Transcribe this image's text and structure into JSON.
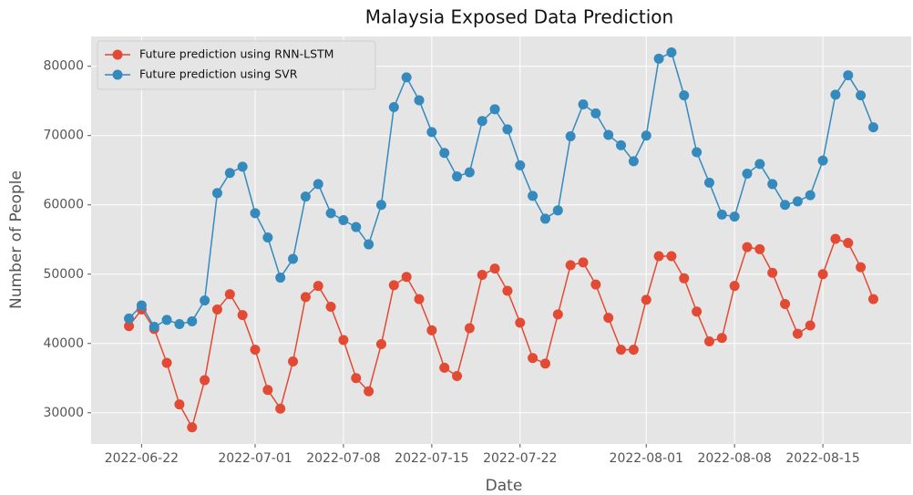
{
  "chart_data": {
    "type": "line",
    "title": "Malaysia Exposed Data Prediction",
    "x_label": "Date",
    "y_label": "Number of People",
    "x": [
      "2022-06-21",
      "2022-06-22",
      "2022-06-23",
      "2022-06-24",
      "2022-06-25",
      "2022-06-26",
      "2022-06-27",
      "2022-06-28",
      "2022-06-29",
      "2022-06-30",
      "2022-07-01",
      "2022-07-02",
      "2022-07-03",
      "2022-07-04",
      "2022-07-05",
      "2022-07-06",
      "2022-07-07",
      "2022-07-08",
      "2022-07-09",
      "2022-07-10",
      "2022-07-11",
      "2022-07-12",
      "2022-07-13",
      "2022-07-14",
      "2022-07-15",
      "2022-07-16",
      "2022-07-17",
      "2022-07-18",
      "2022-07-19",
      "2022-07-20",
      "2022-07-21",
      "2022-07-22",
      "2022-07-23",
      "2022-07-24",
      "2022-07-25",
      "2022-07-26",
      "2022-07-27",
      "2022-07-28",
      "2022-07-29",
      "2022-07-30",
      "2022-07-31",
      "2022-08-01",
      "2022-08-02",
      "2022-08-03",
      "2022-08-04",
      "2022-08-05",
      "2022-08-06",
      "2022-08-07",
      "2022-08-08",
      "2022-08-09",
      "2022-08-10",
      "2022-08-11",
      "2022-08-12",
      "2022-08-13",
      "2022-08-14",
      "2022-08-15",
      "2022-08-16",
      "2022-08-17",
      "2022-08-18",
      "2022-08-19"
    ],
    "series": [
      {
        "name": "Future prediction using RNN-LSTM",
        "color": "#E24A33",
        "values": [
          42500,
          44900,
          42100,
          37200,
          31200,
          27900,
          34700,
          44900,
          47100,
          44100,
          39100,
          33300,
          30600,
          37400,
          46700,
          48300,
          45300,
          40500,
          35000,
          33100,
          39900,
          48400,
          49600,
          46400,
          41900,
          36500,
          35300,
          42200,
          49900,
          50800,
          47600,
          43000,
          37900,
          37100,
          44200,
          51300,
          51700,
          48500,
          43700,
          39100,
          39100,
          46300,
          52600,
          52600,
          49400,
          44600,
          40300,
          40800,
          48300,
          53900,
          53600,
          50200,
          45700,
          41400,
          42600,
          50000,
          55100,
          54500,
          51000,
          46400
        ]
      },
      {
        "name": "Future prediction using SVR",
        "color": "#348ABD",
        "values": [
          43600,
          45500,
          42400,
          43400,
          42800,
          43200,
          46200,
          61700,
          64600,
          65500,
          58800,
          55300,
          49500,
          52200,
          61200,
          63000,
          58800,
          57800,
          56800,
          54300,
          60000,
          74100,
          78400,
          75100,
          70500,
          67500,
          64100,
          64700,
          72100,
          73800,
          70900,
          65700,
          61300,
          58000,
          59200,
          69900,
          74500,
          73200,
          70100,
          68600,
          66300,
          70000,
          81100,
          82000,
          75800,
          67600,
          63200,
          58600,
          58300,
          64500,
          65900,
          63000,
          60000,
          60500,
          61400,
          66400,
          75900,
          78700,
          75800,
          71200
        ]
      }
    ],
    "xlim": [
      "2022-06-18",
      "2022-08-22"
    ],
    "xticks": [
      "2022-06-22",
      "2022-07-01",
      "2022-07-08",
      "2022-07-15",
      "2022-07-22",
      "2022-08-01",
      "2022-08-08",
      "2022-08-15"
    ],
    "ylim": [
      25500,
      84300
    ],
    "yticks": [
      30000,
      40000,
      50000,
      60000,
      70000,
      80000
    ],
    "grid": true,
    "legend": "upper left"
  }
}
